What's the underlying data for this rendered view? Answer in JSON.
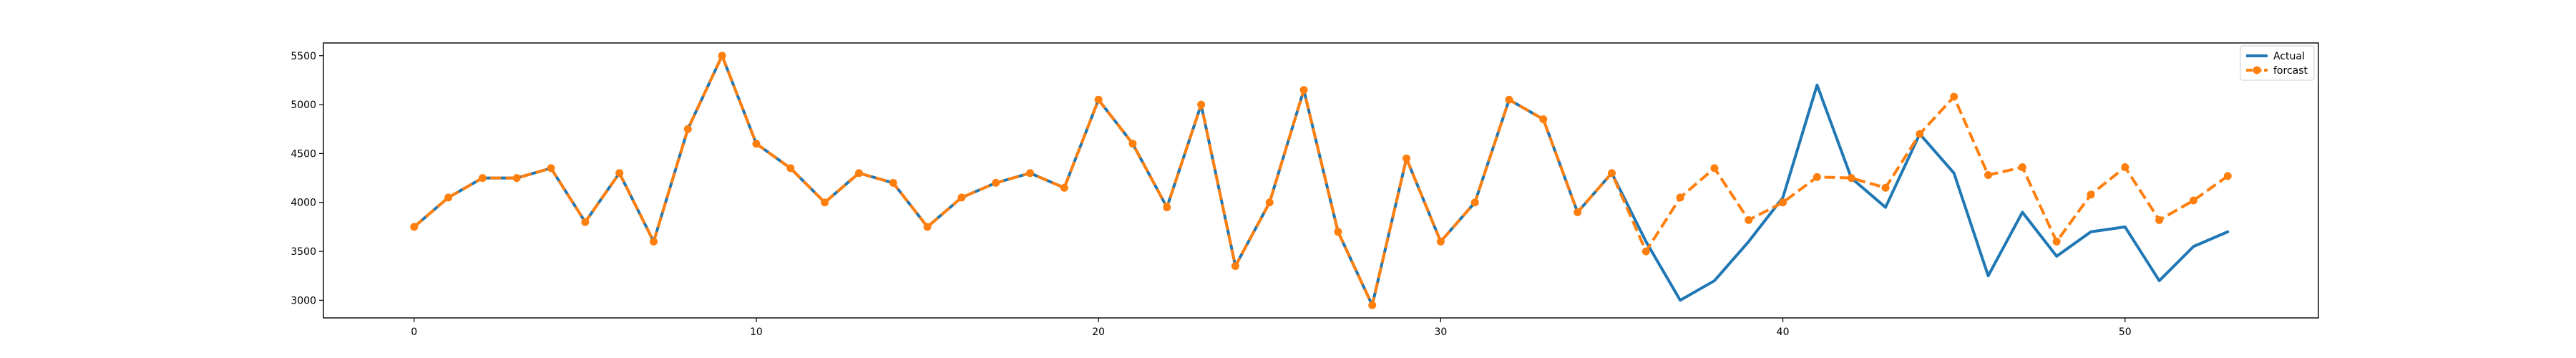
{
  "chart_data": {
    "type": "line",
    "title": "",
    "xlabel": "",
    "ylabel": "",
    "xlim": [
      -2.65,
      55.65
    ],
    "ylim": [
      2820,
      5630
    ],
    "xticks": [
      0,
      10,
      20,
      30,
      40,
      50
    ],
    "yticks": [
      3000,
      3500,
      4000,
      4500,
      5000,
      5500
    ],
    "grid": false,
    "legend_position": "top-right",
    "series": [
      {
        "name": "Actual",
        "color": "#1f77b4",
        "style": "solid",
        "marker": "none",
        "x": [
          0,
          1,
          2,
          3,
          4,
          5,
          6,
          7,
          8,
          9,
          10,
          11,
          12,
          13,
          14,
          15,
          16,
          17,
          18,
          19,
          20,
          21,
          22,
          23,
          24,
          25,
          26,
          27,
          28,
          29,
          30,
          31,
          32,
          33,
          34,
          35,
          36,
          37,
          38,
          39,
          40,
          41,
          42,
          43,
          44,
          45,
          46,
          47,
          48,
          49,
          50,
          51,
          52,
          53
        ],
        "values": [
          3750,
          4050,
          4250,
          4250,
          4350,
          3800,
          4300,
          3600,
          4750,
          5500,
          4600,
          4350,
          4000,
          4300,
          4200,
          3750,
          4050,
          4200,
          4300,
          4150,
          5050,
          4600,
          3950,
          5000,
          3350,
          4000,
          5150,
          3700,
          2950,
          4450,
          3600,
          4000,
          5050,
          4850,
          3900,
          4300,
          3600,
          3000,
          3200,
          3600,
          4050,
          5200,
          4250,
          3950,
          4700,
          4300,
          3250,
          3900,
          3450,
          3700,
          3750,
          3200,
          3550,
          3700
        ]
      },
      {
        "name": "forcast",
        "color": "#ff7f0e",
        "style": "dashed",
        "marker": "circle",
        "x": [
          0,
          1,
          2,
          3,
          4,
          5,
          6,
          7,
          8,
          9,
          10,
          11,
          12,
          13,
          14,
          15,
          16,
          17,
          18,
          19,
          20,
          21,
          22,
          23,
          24,
          25,
          26,
          27,
          28,
          29,
          30,
          31,
          32,
          33,
          34,
          35,
          36,
          37,
          38,
          39,
          40,
          41,
          42,
          43,
          44,
          45,
          46,
          47,
          48,
          49,
          50,
          51,
          52,
          53
        ],
        "values": [
          3750,
          4050,
          4250,
          4250,
          4350,
          3800,
          4300,
          3600,
          4750,
          5500,
          4600,
          4350,
          4000,
          4300,
          4200,
          3750,
          4050,
          4200,
          4300,
          4150,
          5050,
          4600,
          3950,
          5000,
          3350,
          4000,
          5150,
          3700,
          2950,
          4450,
          3600,
          4000,
          5050,
          4850,
          3900,
          4300,
          3500,
          4050,
          4350,
          3820,
          4000,
          4260,
          4250,
          4150,
          4700,
          5080,
          4280,
          4360,
          3600,
          4080,
          4360,
          3820,
          4020,
          4270
        ]
      }
    ]
  }
}
